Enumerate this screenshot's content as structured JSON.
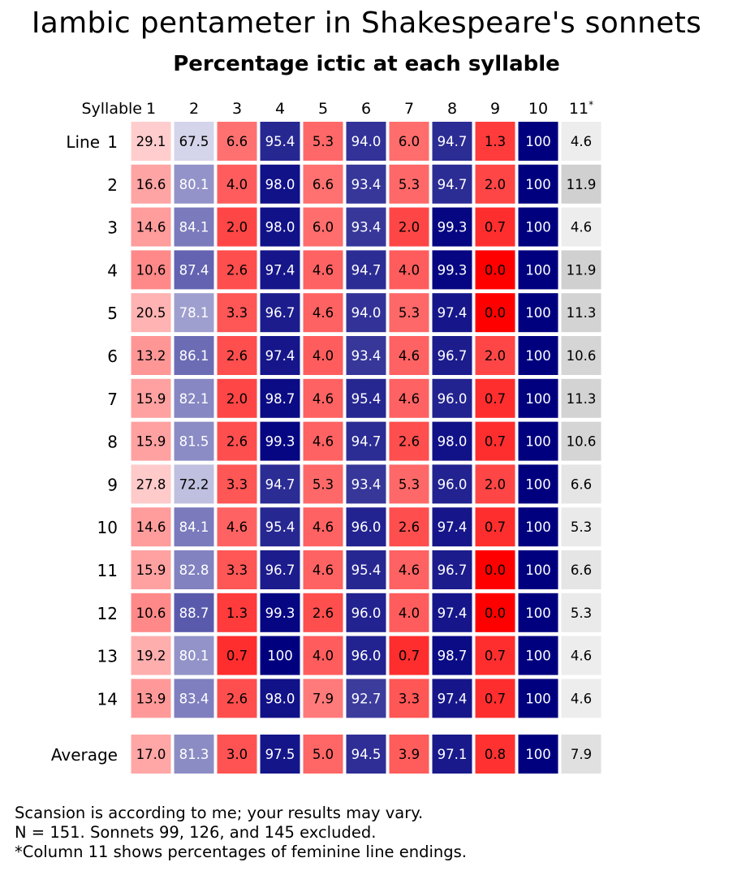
{
  "chart_data": {
    "type": "heatmap",
    "title": "Iambic pentameter in Shakespeare's sonnets",
    "subtitle": "Percentage ictic at each syllable",
    "x_axis_label": "Syllable",
    "y_axis_label": "Line",
    "columns": [
      "1",
      "2",
      "3",
      "4",
      "5",
      "6",
      "7",
      "8",
      "9",
      "10",
      "11"
    ],
    "column_11_marker": "*",
    "rows": [
      "1",
      "2",
      "3",
      "4",
      "5",
      "6",
      "7",
      "8",
      "9",
      "10",
      "11",
      "12",
      "13",
      "14"
    ],
    "values": [
      [
        "29.1",
        "67.5",
        "6.6",
        "95.4",
        "5.3",
        "94.0",
        "6.0",
        "94.7",
        "1.3",
        "100",
        "4.6"
      ],
      [
        "16.6",
        "80.1",
        "4.0",
        "98.0",
        "6.6",
        "93.4",
        "5.3",
        "94.7",
        "2.0",
        "100",
        "11.9"
      ],
      [
        "14.6",
        "84.1",
        "2.0",
        "98.0",
        "6.0",
        "93.4",
        "2.0",
        "99.3",
        "0.7",
        "100",
        "4.6"
      ],
      [
        "10.6",
        "87.4",
        "2.6",
        "97.4",
        "4.6",
        "94.7",
        "4.0",
        "99.3",
        "0.0",
        "100",
        "11.9"
      ],
      [
        "20.5",
        "78.1",
        "3.3",
        "96.7",
        "4.6",
        "94.0",
        "5.3",
        "97.4",
        "0.0",
        "100",
        "11.3"
      ],
      [
        "13.2",
        "86.1",
        "2.6",
        "97.4",
        "4.0",
        "93.4",
        "4.6",
        "96.7",
        "2.0",
        "100",
        "10.6"
      ],
      [
        "15.9",
        "82.1",
        "2.0",
        "98.7",
        "4.6",
        "95.4",
        "4.6",
        "96.0",
        "0.7",
        "100",
        "11.3"
      ],
      [
        "15.9",
        "81.5",
        "2.6",
        "99.3",
        "4.6",
        "94.7",
        "2.6",
        "98.0",
        "0.7",
        "100",
        "10.6"
      ],
      [
        "27.8",
        "72.2",
        "3.3",
        "94.7",
        "5.3",
        "93.4",
        "5.3",
        "96.0",
        "2.0",
        "100",
        "6.6"
      ],
      [
        "14.6",
        "84.1",
        "4.6",
        "95.4",
        "4.6",
        "96.0",
        "2.6",
        "97.4",
        "0.7",
        "100",
        "5.3"
      ],
      [
        "15.9",
        "82.8",
        "3.3",
        "96.7",
        "4.6",
        "95.4",
        "4.6",
        "96.7",
        "0.0",
        "100",
        "6.6"
      ],
      [
        "10.6",
        "88.7",
        "1.3",
        "99.3",
        "2.6",
        "96.0",
        "4.0",
        "97.4",
        "0.0",
        "100",
        "5.3"
      ],
      [
        "19.2",
        "80.1",
        "0.7",
        "100",
        "4.0",
        "96.0",
        "0.7",
        "98.7",
        "0.7",
        "100",
        "4.6"
      ],
      [
        "13.9",
        "83.4",
        "2.6",
        "98.0",
        "7.9",
        "92.7",
        "3.3",
        "97.4",
        "0.7",
        "100",
        "4.6"
      ]
    ],
    "average_label": "Average",
    "average": [
      "17.0",
      "81.3",
      "3.0",
      "97.5",
      "5.0",
      "94.5",
      "3.9",
      "97.1",
      "0.8",
      "100",
      "7.9"
    ],
    "color_scale": {
      "low": "#ff0000",
      "mid": "#ffffff",
      "high": "#00007f",
      "feminine_ending": "#d0d0d0"
    }
  },
  "notes": [
    "Scansion is according to me; your results may vary.",
    "N = 151. Sonnets 99, 126, and 145 excluded.",
    "*Column 11 shows percentages of feminine line endings."
  ]
}
